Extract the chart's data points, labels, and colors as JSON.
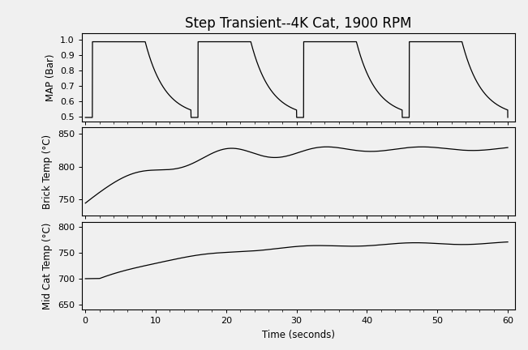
{
  "title": "Step Transient--4K Cat, 1900 RPM",
  "xlabel": "Time (seconds)",
  "ylabel_map": "MAP (Bar)",
  "ylabel_brick": "Brick Temp (°C)",
  "ylabel_midcat": "Mid Cat Temp (°C)",
  "map_ylim": [
    0.47,
    1.04
  ],
  "map_yticks": [
    0.5,
    0.6,
    0.7,
    0.8,
    0.9,
    1.0
  ],
  "brick_ylim": [
    725,
    860
  ],
  "brick_yticks": [
    750,
    800,
    850
  ],
  "midcat_ylim": [
    640,
    810
  ],
  "midcat_yticks": [
    650,
    700,
    750,
    800
  ],
  "xlim": [
    -0.5,
    61
  ],
  "xticks": [
    0,
    10,
    20,
    30,
    40,
    50,
    60
  ],
  "map_period": 15.0,
  "map_rise_time": 1.0,
  "map_high_dur": 7.5,
  "map_decay_tau": 2.8,
  "map_high": 0.985,
  "map_low": 0.495,
  "line_color": "#000000",
  "line_width": 0.9,
  "background_color": "#f0f0f0",
  "title_fontsize": 12,
  "label_fontsize": 8.5,
  "tick_fontsize": 8
}
